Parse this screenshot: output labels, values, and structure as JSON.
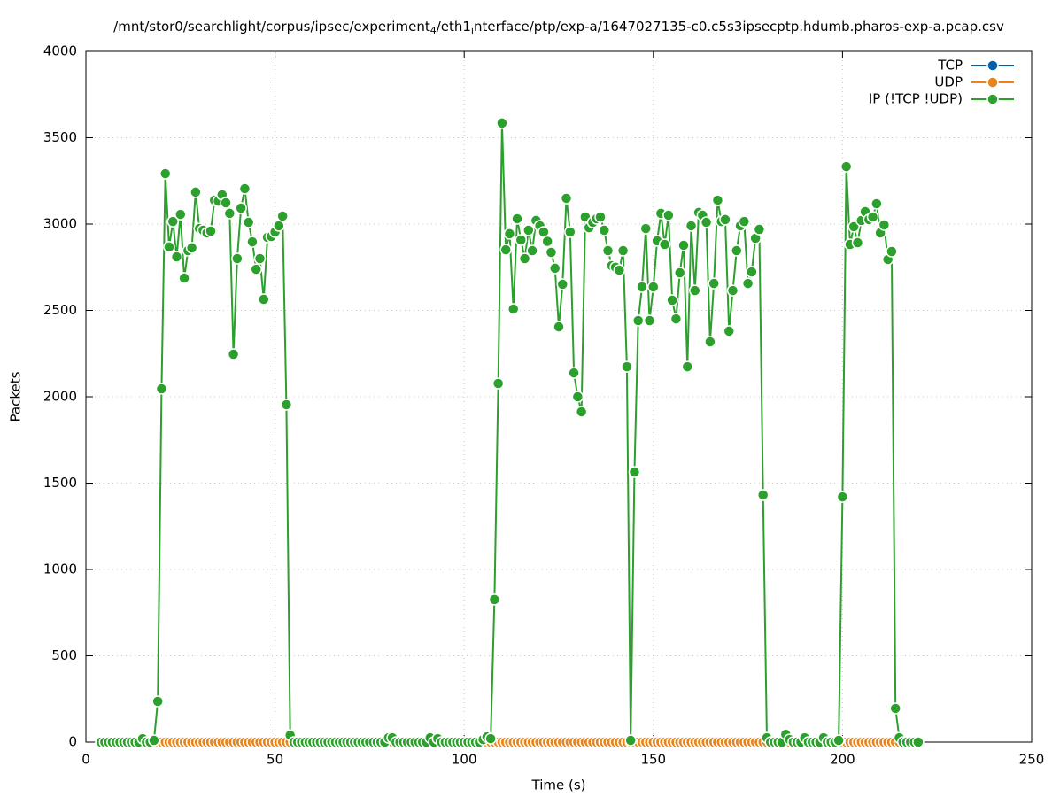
{
  "chart_data": {
    "type": "line",
    "title": "/mnt/stor0/searchlight/corpus/ipsec/experiment_4/eth1_interface/ptp/exp-a/1647027135-c0.c5s3ipsecptp.hdumb.pharos-exp-a.pcap.csv",
    "x_label": "Time (s)",
    "y_label": "Packets",
    "xlim": [
      0,
      250
    ],
    "xticks": [
      0,
      50,
      100,
      150,
      200,
      250
    ],
    "ylim": [
      0,
      4000
    ],
    "yticks": [
      0,
      500,
      1000,
      1500,
      2000,
      2500,
      3000,
      3500,
      4000
    ],
    "grid": true,
    "legend": "top right",
    "x": [
      4,
      5,
      6,
      7,
      8,
      9,
      10,
      11,
      12,
      13,
      14,
      15,
      16,
      17,
      18,
      19,
      20,
      21,
      22,
      23,
      24,
      25,
      26,
      27,
      28,
      29,
      30,
      31,
      32,
      33,
      34,
      35,
      36,
      37,
      38,
      39,
      40,
      41,
      42,
      43,
      44,
      45,
      46,
      47,
      48,
      49,
      50,
      51,
      52,
      53,
      54,
      55,
      56,
      57,
      58,
      59,
      60,
      61,
      62,
      63,
      64,
      65,
      66,
      67,
      68,
      69,
      70,
      71,
      72,
      73,
      74,
      75,
      76,
      77,
      78,
      79,
      80,
      81,
      82,
      83,
      84,
      85,
      86,
      87,
      88,
      89,
      90,
      91,
      92,
      93,
      94,
      95,
      96,
      97,
      98,
      99,
      100,
      101,
      102,
      103,
      104,
      105,
      106,
      107,
      108,
      109,
      110,
      111,
      112,
      113,
      114,
      115,
      116,
      117,
      118,
      119,
      120,
      121,
      122,
      123,
      124,
      125,
      126,
      127,
      128,
      129,
      130,
      131,
      132,
      133,
      134,
      135,
      136,
      137,
      138,
      139,
      140,
      141,
      142,
      143,
      144,
      145,
      146,
      147,
      148,
      149,
      150,
      151,
      152,
      153,
      154,
      155,
      156,
      157,
      158,
      159,
      160,
      161,
      162,
      163,
      164,
      165,
      166,
      167,
      168,
      169,
      170,
      171,
      172,
      173,
      174,
      175,
      176,
      177,
      178,
      179,
      180,
      181,
      182,
      183,
      184,
      185,
      186,
      187,
      188,
      189,
      190,
      191,
      192,
      193,
      194,
      195,
      196,
      197,
      198,
      199,
      200,
      201,
      202,
      203,
      204,
      205,
      206,
      207,
      208,
      209,
      210,
      211,
      212,
      213,
      214,
      215,
      216,
      217,
      218,
      219,
      220
    ],
    "series": [
      {
        "name": "TCP",
        "color": "#0060ad",
        "values": [
          0,
          0,
          0,
          0,
          0,
          0,
          0,
          0,
          0,
          0,
          0,
          0,
          0,
          0,
          0,
          0,
          0,
          0,
          0,
          0,
          0,
          0,
          0,
          0,
          0,
          0,
          0,
          0,
          0,
          0,
          0,
          0,
          0,
          0,
          0,
          0,
          0,
          0,
          0,
          0,
          0,
          0,
          0,
          0,
          0,
          0,
          0,
          0,
          0,
          0,
          0,
          0,
          0,
          0,
          0,
          0,
          0,
          0,
          0,
          0,
          0,
          0,
          0,
          0,
          0,
          0,
          0,
          0,
          0,
          0,
          0,
          0,
          0,
          0,
          0,
          0,
          0,
          0,
          0,
          0,
          0,
          0,
          0,
          0,
          0,
          0,
          0,
          0,
          0,
          0,
          0,
          0,
          0,
          0,
          0,
          0,
          0,
          0,
          0,
          0,
          0,
          0,
          0,
          0,
          0,
          0,
          0,
          0,
          0,
          0,
          0,
          0,
          0,
          0,
          0,
          0,
          0,
          0,
          0,
          0,
          0,
          0,
          0,
          0,
          0,
          0,
          0,
          0,
          0,
          0,
          0,
          0,
          0,
          0,
          0,
          0,
          0,
          0,
          0,
          0,
          0,
          0,
          0,
          0,
          0,
          0,
          0,
          0,
          0,
          0,
          0,
          0,
          0,
          0,
          0,
          0,
          0,
          0,
          0,
          0,
          0,
          0,
          0,
          0,
          0,
          0,
          0,
          0,
          0,
          0,
          0,
          0,
          0,
          0,
          0,
          0,
          0,
          0,
          0,
          0,
          0,
          0,
          0,
          0,
          0,
          0,
          0,
          0,
          0,
          0,
          0,
          0,
          0,
          0,
          0,
          0,
          0,
          0,
          0,
          0,
          0,
          0,
          0,
          0,
          0,
          0,
          0,
          0,
          0,
          0,
          0,
          0,
          0,
          0,
          0,
          0,
          0
        ]
      },
      {
        "name": "UDP",
        "color": "#e8841a",
        "values": [
          0,
          0,
          0,
          0,
          0,
          0,
          0,
          0,
          0,
          0,
          0,
          0,
          0,
          0,
          0,
          0,
          0,
          0,
          0,
          0,
          0,
          0,
          0,
          0,
          0,
          0,
          0,
          0,
          0,
          0,
          0,
          0,
          0,
          0,
          0,
          0,
          0,
          0,
          0,
          0,
          0,
          0,
          0,
          0,
          0,
          0,
          0,
          0,
          0,
          0,
          0,
          0,
          0,
          0,
          0,
          0,
          0,
          0,
          0,
          0,
          0,
          0,
          0,
          0,
          0,
          0,
          0,
          0,
          0,
          0,
          0,
          0,
          0,
          0,
          0,
          0,
          0,
          0,
          0,
          0,
          0,
          0,
          0,
          0,
          0,
          0,
          0,
          0,
          0,
          0,
          0,
          0,
          0,
          0,
          0,
          0,
          0,
          0,
          0,
          0,
          0,
          0,
          0,
          0,
          0,
          0,
          0,
          0,
          0,
          0,
          0,
          0,
          0,
          0,
          0,
          0,
          0,
          0,
          0,
          0,
          0,
          0,
          0,
          0,
          0,
          0,
          0,
          0,
          0,
          0,
          0,
          0,
          0,
          0,
          0,
          0,
          0,
          0,
          0,
          0,
          0,
          0,
          0,
          0,
          0,
          0,
          0,
          0,
          0,
          0,
          0,
          0,
          0,
          0,
          0,
          0,
          0,
          0,
          0,
          0,
          0,
          0,
          0,
          0,
          0,
          0,
          0,
          0,
          0,
          0,
          0,
          0,
          0,
          0,
          0,
          0,
          0,
          0,
          0,
          0,
          0,
          0,
          0,
          0,
          0,
          0,
          0,
          0,
          0,
          0,
          0,
          0,
          0,
          0,
          0,
          0,
          0,
          0,
          0,
          0,
          0,
          0,
          0,
          0,
          0,
          0,
          0,
          0,
          0,
          0,
          0,
          0,
          0,
          0,
          0,
          0,
          0
        ]
      },
      {
        "name": "IP (!TCP  !UDP)",
        "color": "#2ca02c",
        "values": [
          0,
          0,
          0,
          0,
          0,
          0,
          0,
          0,
          0,
          0,
          0,
          20,
          0,
          0,
          10,
          236,
          2046,
          3292,
          2867,
          3015,
          2810,
          3056,
          2687,
          2846,
          2862,
          3185,
          2974,
          2964,
          2949,
          2959,
          3138,
          3133,
          3170,
          3123,
          3062,
          2246,
          2800,
          3092,
          3205,
          3010,
          2897,
          2738,
          2800,
          2564,
          2923,
          2928,
          2954,
          2990,
          3046,
          1954,
          40,
          0,
          0,
          0,
          0,
          0,
          0,
          0,
          0,
          0,
          0,
          0,
          0,
          0,
          0,
          0,
          0,
          0,
          0,
          0,
          0,
          0,
          0,
          0,
          0,
          0,
          25,
          25,
          0,
          0,
          0,
          0,
          0,
          0,
          0,
          0,
          0,
          25,
          0,
          20,
          0,
          0,
          0,
          0,
          0,
          0,
          0,
          0,
          0,
          0,
          0,
          15,
          30,
          20,
          826,
          2077,
          3585,
          2851,
          2944,
          2508,
          3031,
          2908,
          2800,
          2964,
          2846,
          3021,
          2990,
          2954,
          2900,
          2836,
          2744,
          2405,
          2651,
          3149,
          2954,
          2138,
          2000,
          1913,
          3041,
          2979,
          3010,
          3031,
          3041,
          2964,
          2846,
          2759,
          2750,
          2733,
          2846,
          2174,
          10,
          1564,
          2441,
          2636,
          2974,
          2441,
          2636,
          2903,
          3062,
          2882,
          3051,
          2559,
          2451,
          2718,
          2877,
          2174,
          2990,
          2615,
          3067,
          3051,
          3010,
          2318,
          2656,
          3138,
          3015,
          3026,
          2380,
          2615,
          2846,
          2990,
          3015,
          2656,
          2723,
          2918,
          2969,
          1431,
          25,
          0,
          0,
          0,
          0,
          45,
          15,
          0,
          0,
          0,
          25,
          0,
          0,
          0,
          0,
          25,
          0,
          0,
          0,
          10,
          1420,
          3333,
          2882,
          2985,
          2892,
          3021,
          3072,
          3026,
          3041,
          3118,
          2949,
          2995,
          2795,
          2841,
          195,
          25,
          0,
          0,
          0,
          0,
          0
        ]
      }
    ]
  }
}
